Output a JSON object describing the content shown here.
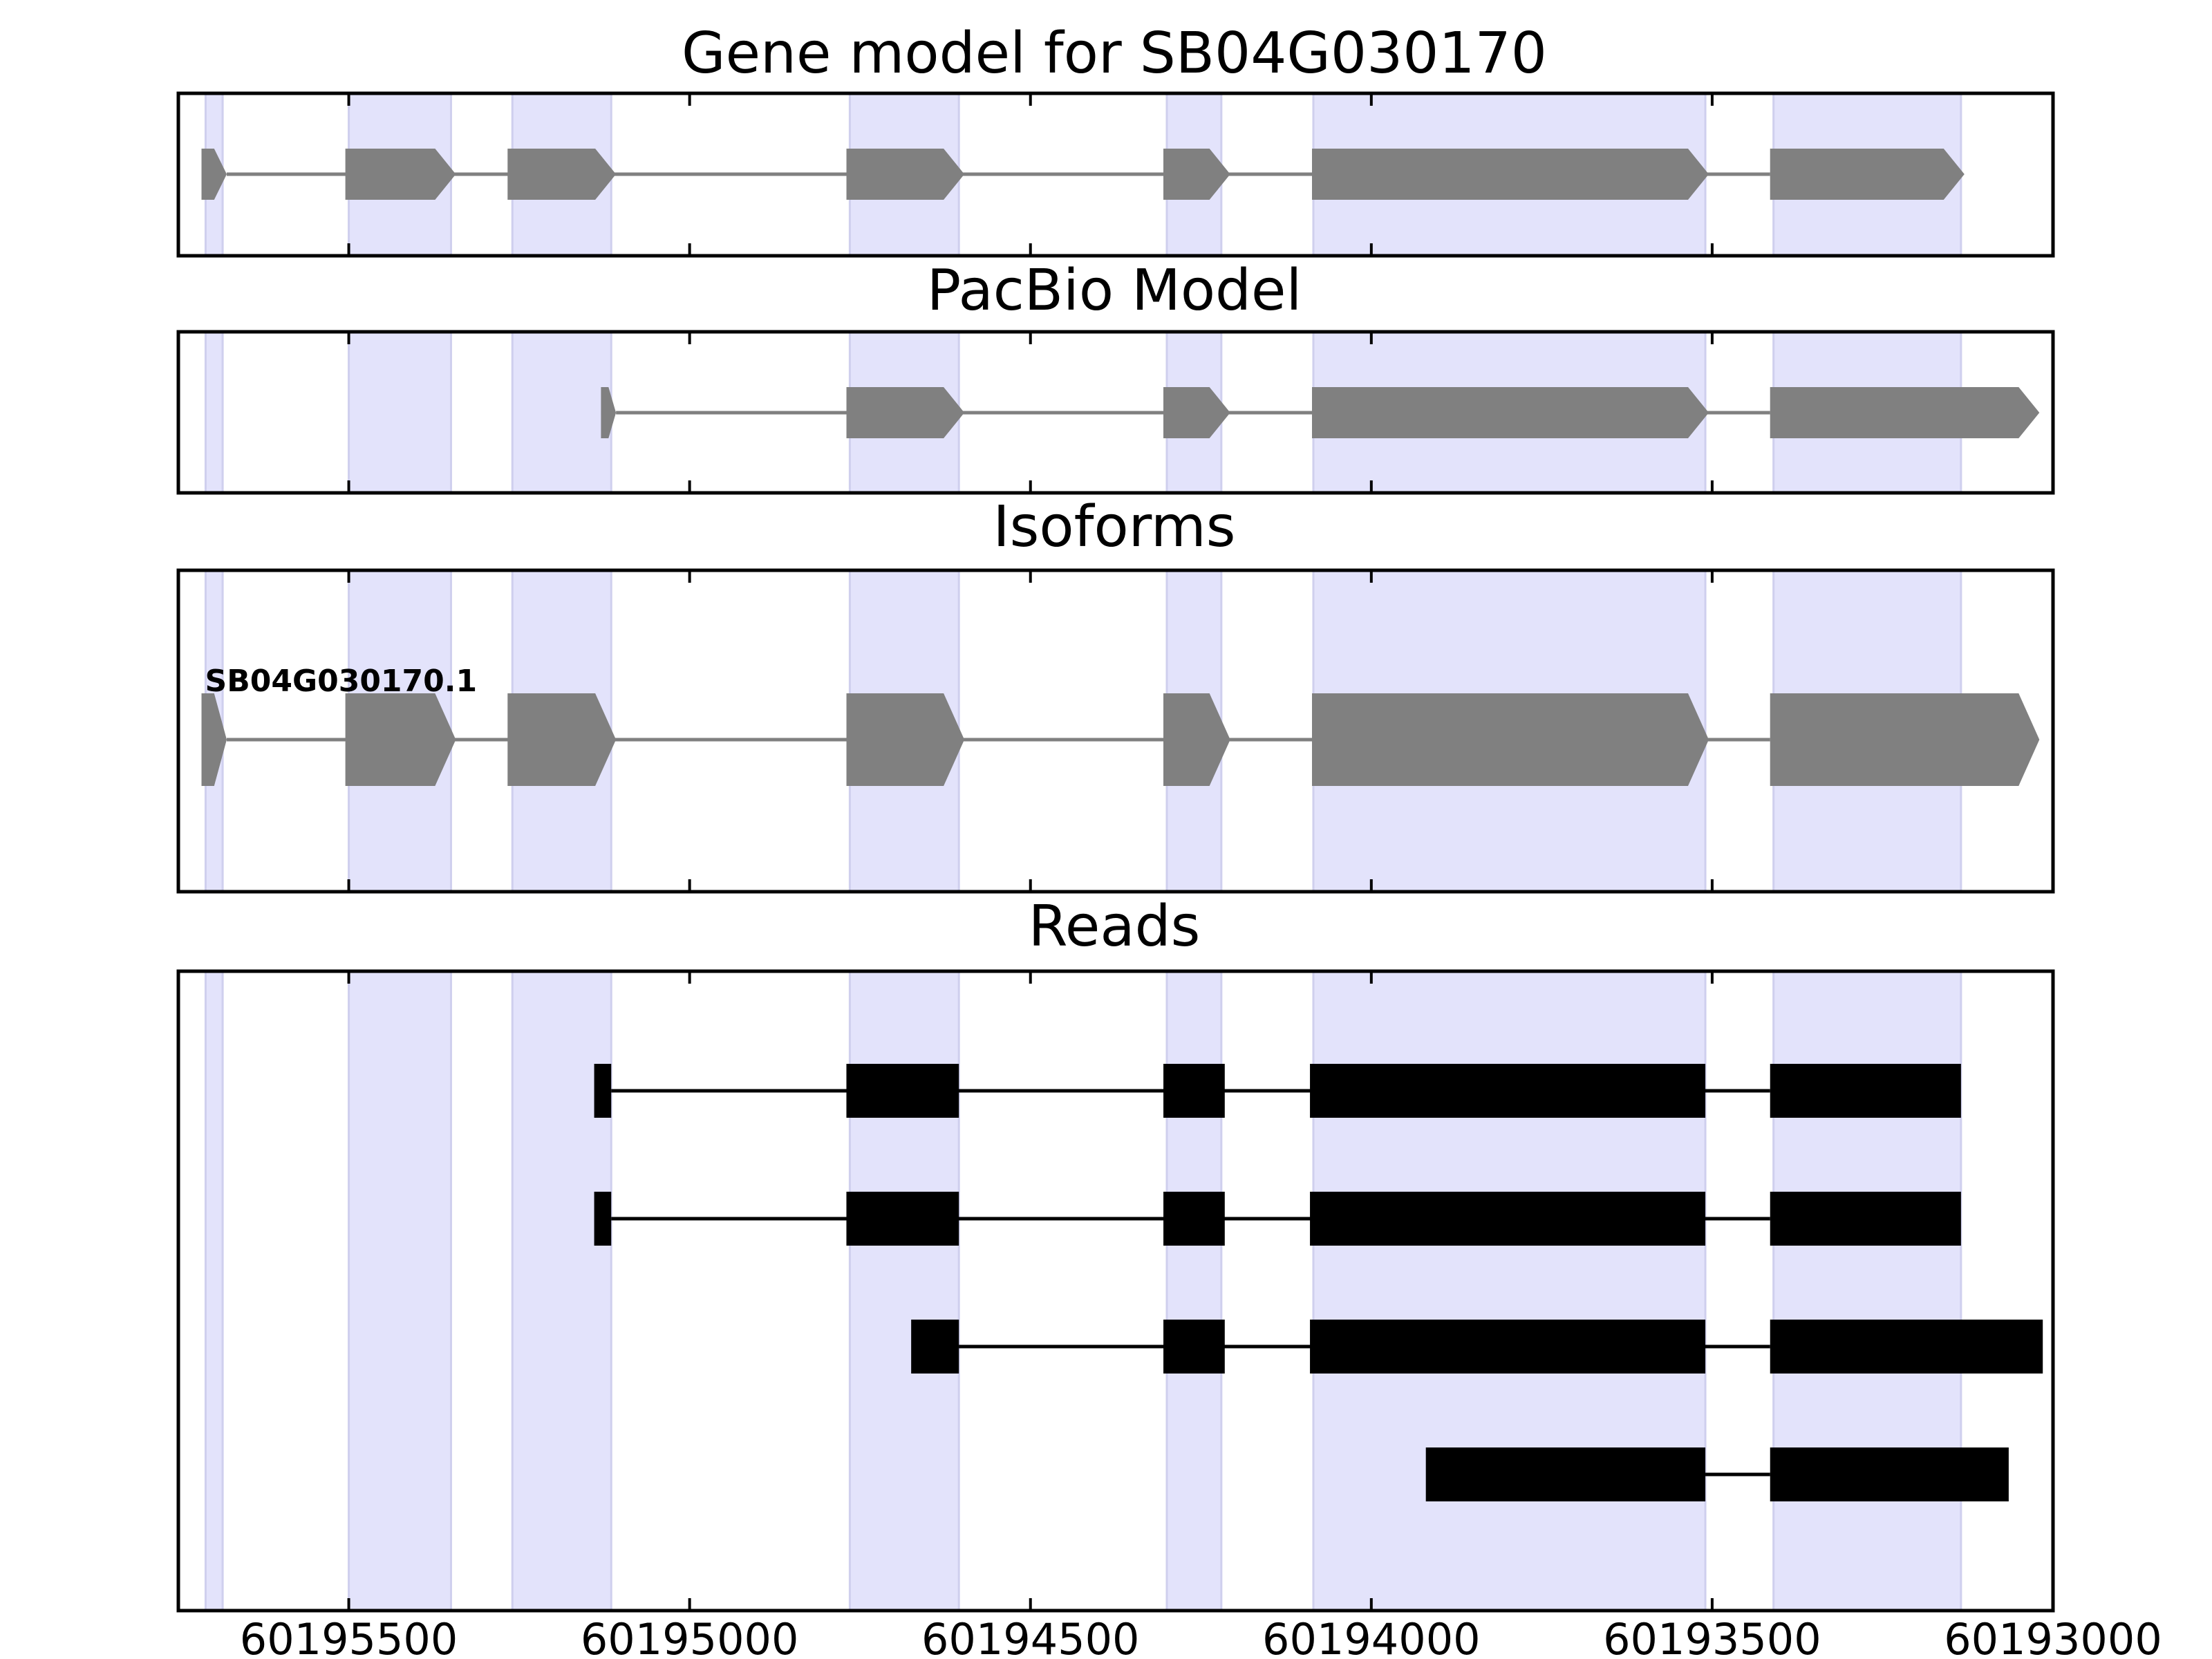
{
  "chart_data": {
    "type": "gene-structure",
    "x_axis": {
      "direction": "reversed",
      "xlim": [
        60195750,
        60193000
      ],
      "ticks": [
        60195500,
        60195000,
        60194500,
        60194000,
        60193500,
        60193000
      ],
      "tick_labels": [
        "60195500",
        "60195000",
        "60194500",
        "60194000",
        "60193500",
        "60193000"
      ]
    },
    "highlight_color": "#e3e3fb",
    "gene_color": "#808080",
    "read_color": "#000000",
    "highlight_regions": [
      [
        60195710,
        60195685
      ],
      [
        60195500,
        60195350
      ],
      [
        60195260,
        60195115
      ],
      [
        60194765,
        60194605
      ],
      [
        60194300,
        60194220
      ],
      [
        60194085,
        60193510
      ],
      [
        60193410,
        60193135
      ]
    ],
    "panels": [
      {
        "title": "Gene model for SB04G030170",
        "track_color": "#808080",
        "rows": [
          {
            "exons": [
              [
                60195716,
                60195679
              ],
              [
                60195505,
                60195343
              ],
              [
                60195267,
                60195108
              ],
              [
                60194770,
                60194597
              ],
              [
                60194305,
                60194207
              ],
              [
                60194087,
                60193505
              ],
              [
                60193415,
                60193130
              ]
            ]
          }
        ]
      },
      {
        "title": "PacBio Model",
        "track_color": "#808080",
        "rows": [
          {
            "exons": [
              [
                60195130,
                60195108
              ],
              [
                60194770,
                60194597
              ],
              [
                60194305,
                60194207
              ],
              [
                60194087,
                60193505
              ],
              [
                60193415,
                60193020
              ]
            ]
          }
        ]
      },
      {
        "title": "Isoforms",
        "track_color": "#808080",
        "rows": [
          {
            "label": "SB04G030170.1",
            "exons": [
              [
                60195716,
                60195679
              ],
              [
                60195505,
                60195343
              ],
              [
                60195267,
                60195108
              ],
              [
                60194770,
                60194597
              ],
              [
                60194305,
                60194207
              ],
              [
                60194087,
                60193505
              ],
              [
                60193415,
                60193020
              ]
            ]
          }
        ]
      },
      {
        "title": "Reads",
        "track_color": "#000000",
        "rows": [
          {
            "exons": [
              [
                60195140,
                60195115
              ],
              [
                60194770,
                60194605
              ],
              [
                60194305,
                60194215
              ],
              [
                60194090,
                60193510
              ],
              [
                60193415,
                60193135
              ]
            ]
          },
          {
            "exons": [
              [
                60195140,
                60195115
              ],
              [
                60194770,
                60194605
              ],
              [
                60194305,
                60194215
              ],
              [
                60194090,
                60193510
              ],
              [
                60193415,
                60193135
              ]
            ]
          },
          {
            "exons": [
              [
                60194675,
                60194605
              ],
              [
                60194305,
                60194215
              ],
              [
                60194090,
                60193510
              ],
              [
                60193415,
                60193015
              ]
            ]
          },
          {
            "exons": [
              [
                60193920,
                60193510
              ],
              [
                60193415,
                60193065
              ]
            ]
          }
        ]
      }
    ]
  }
}
